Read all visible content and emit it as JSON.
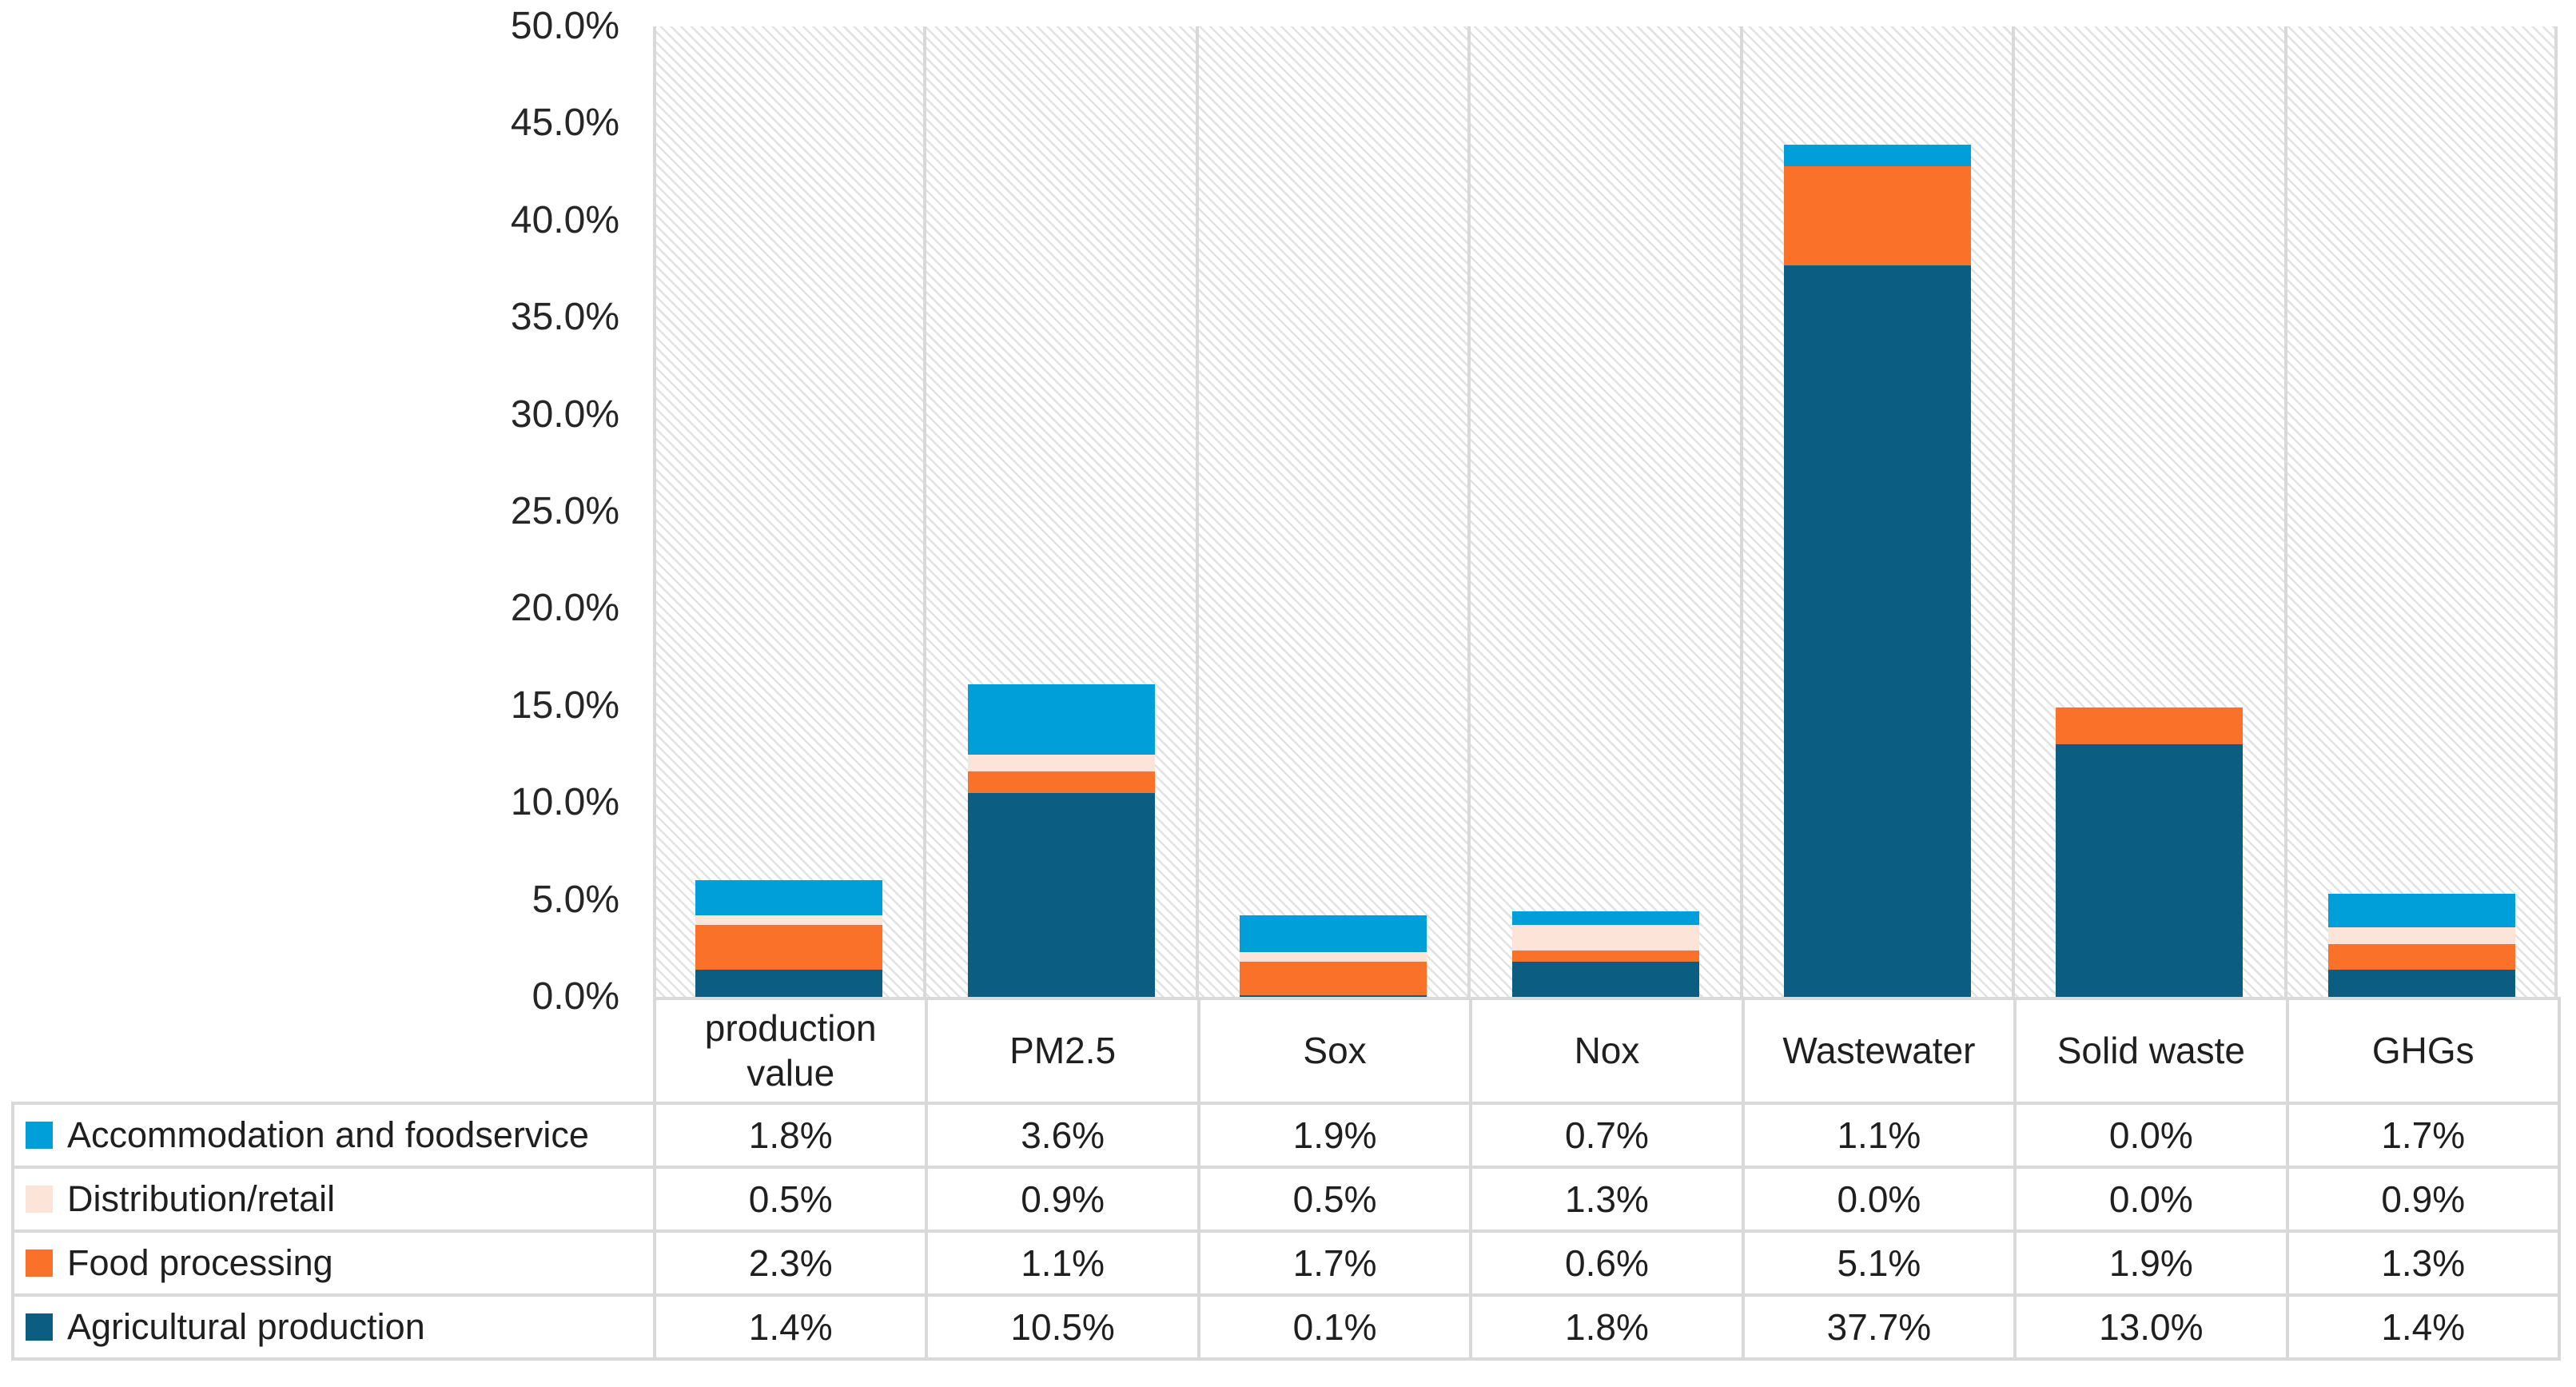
{
  "figure": {
    "background_color": "#FFFFFF",
    "text_color": "#1F1F1F",
    "grid_color": "#D9D9D9",
    "table_border_color": "#D9D9D9",
    "plot_hatch_color": "#E2E2E2"
  },
  "chart_data": {
    "type": "bar",
    "variant": "stacked-vertical",
    "title": "",
    "xlabel": "",
    "ylabel": "",
    "categories": [
      "production value",
      "PM2.5",
      "Sox",
      "Nox",
      "Wastewater",
      "Solid waste",
      "GHGs"
    ],
    "series": [
      {
        "name": "Accommodation and foodservice",
        "color": "#009FD9",
        "values": [
          1.8,
          3.6,
          1.9,
          0.7,
          1.1,
          0.0,
          1.7
        ]
      },
      {
        "name": "Distribution/retail",
        "color": "#FCE4D8",
        "values": [
          0.5,
          0.9,
          0.5,
          1.3,
          0.0,
          0.0,
          0.9
        ]
      },
      {
        "name": "Food processing",
        "color": "#FA7229",
        "values": [
          2.3,
          1.1,
          1.7,
          0.6,
          5.1,
          1.9,
          1.3
        ]
      },
      {
        "name": "Agricultural production",
        "color": "#0B5E81",
        "values": [
          1.4,
          10.5,
          0.1,
          1.8,
          37.7,
          13.0,
          1.4
        ]
      }
    ],
    "stack_order_bottom_to_top": [
      "Agricultural production",
      "Food processing",
      "Distribution/retail",
      "Accommodation and foodservice"
    ],
    "y_axis": {
      "min": 0,
      "max": 50,
      "step": 5,
      "tick_labels": [
        "50.0%",
        "45.0%",
        "40.0%",
        "35.0%",
        "30.0%",
        "25.0%",
        "20.0%",
        "15.0%",
        "10.0%",
        "5.0%",
        "0.0%"
      ]
    },
    "value_format": "percent_one_decimal",
    "grid": "vertical-category-separators-only",
    "plot_background": "light-diagonal-hatch",
    "legend_position": "table-rows-left-of-data-table"
  }
}
